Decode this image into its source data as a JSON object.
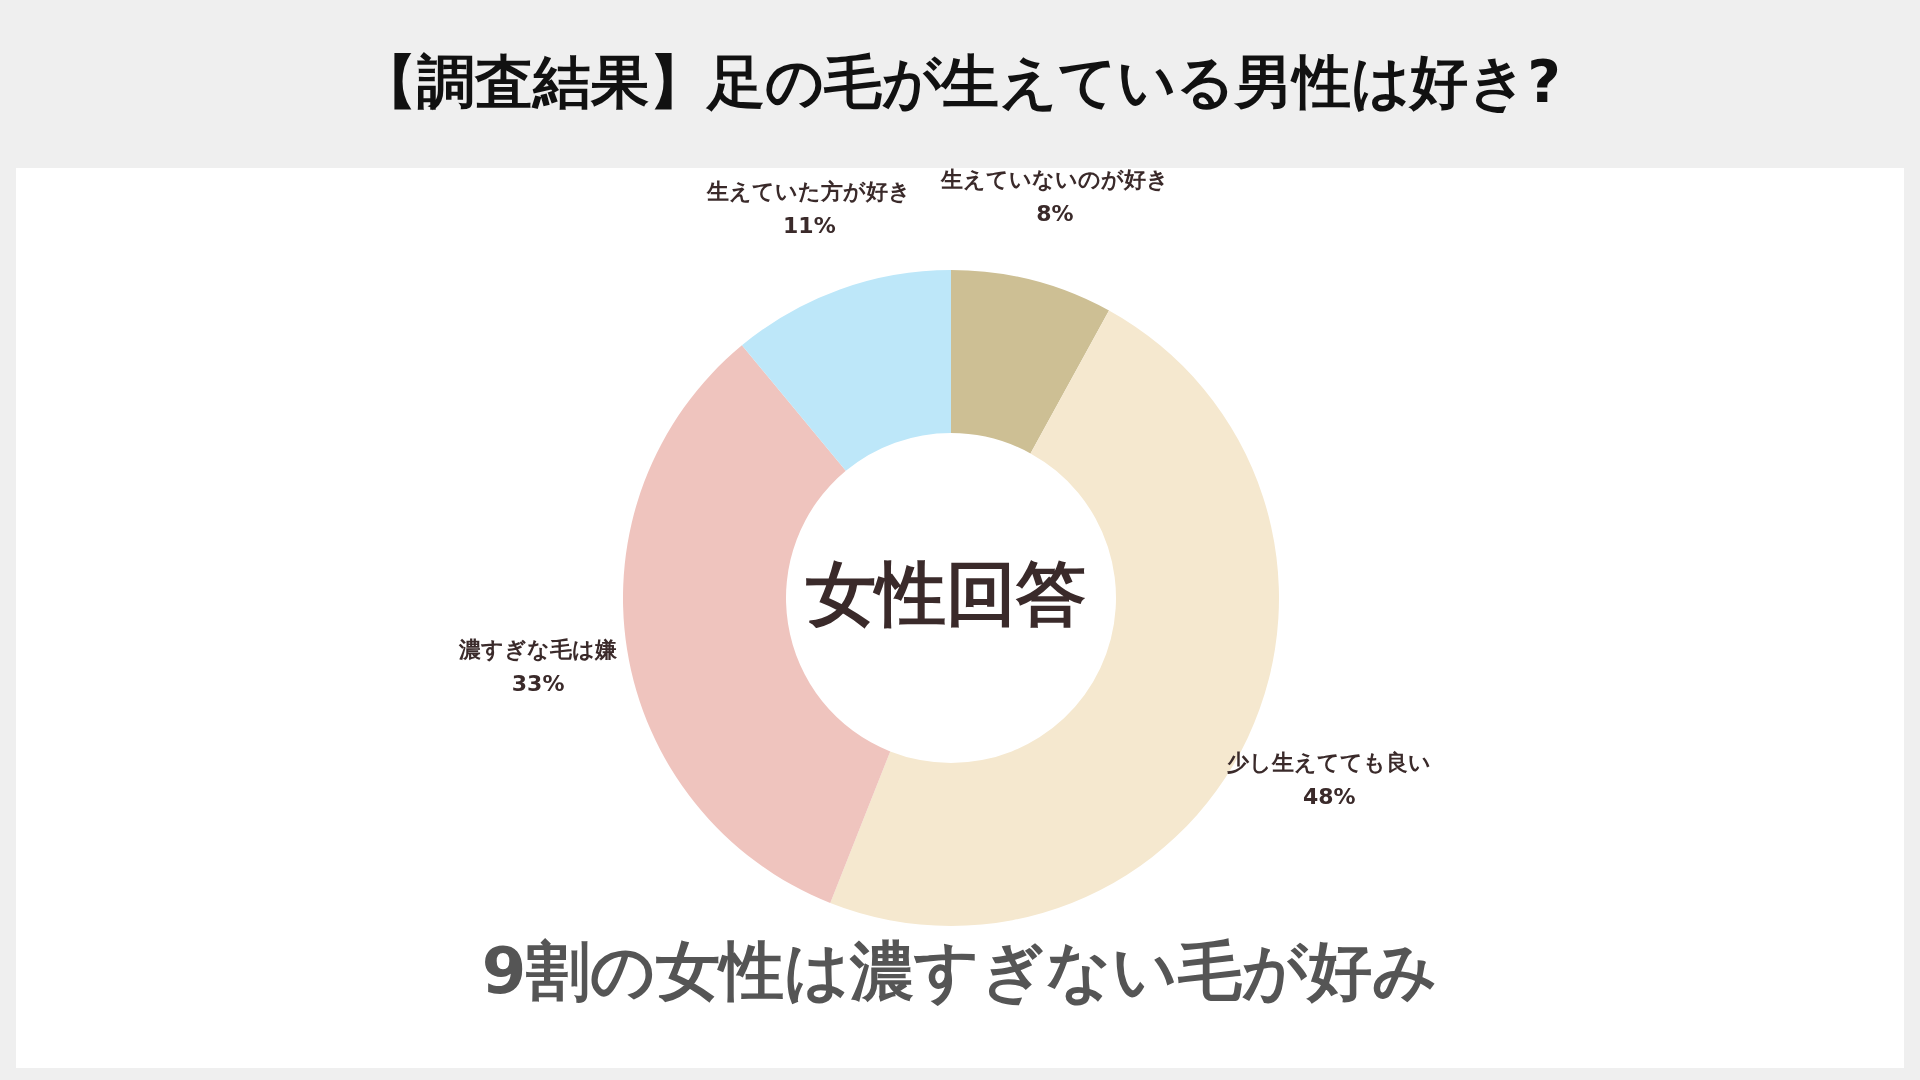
{
  "chart_data": {
    "type": "donut",
    "title": "【調査結果】足の毛が生えている男性は好き?",
    "categories": [
      "生えていないのが好き",
      "少し生えてても良い",
      "濃すぎな毛は嫌",
      "生えていた方が好き"
    ],
    "values": [
      8,
      48,
      33,
      11
    ],
    "value_labels": [
      "8%",
      "48%",
      "33%",
      "11%"
    ],
    "colors": [
      "#cdbf94",
      "#f5e8cf",
      "#efc4be",
      "#bde7f9"
    ],
    "annotations": [
      "女性回答",
      "9割の女性は濃すぎない毛が好み"
    ],
    "legend": false
  }
}
